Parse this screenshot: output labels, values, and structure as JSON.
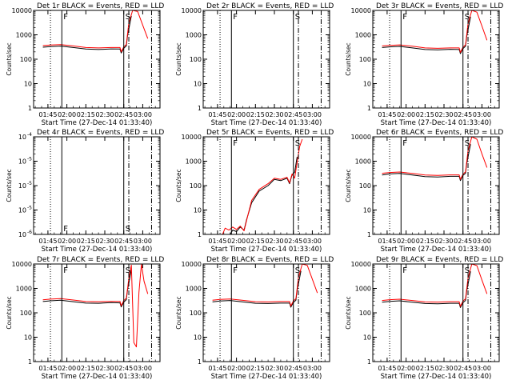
{
  "chart_data": [
    {
      "type": "line",
      "title": "Det 1r BLACK = Events, RED = LLD",
      "xlabel": "Start Time (27-Dec-14 01:33:40)",
      "ylabel": "Counts/sec",
      "y_scale": "log",
      "ylim": [
        1,
        10000
      ],
      "xlim": [
        "01:33:40",
        "03:13:40"
      ],
      "x_ticks": [
        "01:45",
        "02:00",
        "02:15",
        "02:30",
        "02:45",
        "03:00"
      ],
      "y_ticks": [
        "1",
        "10",
        "100",
        "1000",
        "10000"
      ],
      "vline_labels": [
        "F",
        "S"
      ],
      "series": [
        {
          "color": "#000000",
          "x": [
            "01:41",
            "01:47",
            "01:55",
            "02:05",
            "02:15",
            "02:25",
            "02:35",
            "02:42",
            "02:43",
            "02:45",
            "02:47",
            "02:48",
            "02:51"
          ],
          "values": [
            310,
            330,
            345,
            300,
            260,
            250,
            265,
            260,
            180,
            280,
            350,
            900,
            6000
          ]
        },
        {
          "color": "#ff0000",
          "x": [
            "01:41",
            "01:47",
            "01:55",
            "02:05",
            "02:15",
            "02:25",
            "02:35",
            "02:42",
            "02:43",
            "02:45",
            "02:47",
            "02:49",
            "02:52",
            "02:56",
            "03:00",
            "03:04"
          ],
          "values": [
            360,
            380,
            395,
            350,
            300,
            290,
            300,
            300,
            200,
            320,
            400,
            3000,
            10000,
            9000,
            2500,
            700
          ]
        }
      ]
    },
    {
      "type": "line",
      "title": "Det 2r BLACK = Events, RED = LLD",
      "xlabel": "Start Time (27-Dec-14 01:33:40)",
      "ylabel": "Counts/sec",
      "y_scale": "log",
      "ylim": [
        1,
        10000
      ],
      "xlim": [
        "01:33:40",
        "03:13:40"
      ],
      "x_ticks": [
        "01:45",
        "02:00",
        "02:15",
        "02:30",
        "02:45",
        "03:00"
      ],
      "y_ticks": [
        "1",
        "10",
        "100",
        "1000",
        "10000"
      ],
      "vline_labels": [
        "F",
        "S"
      ],
      "series": []
    },
    {
      "type": "line",
      "title": "Det 3r BLACK = Events, RED = LLD",
      "xlabel": "Start Time (27-Dec-14 01:33:40)",
      "ylabel": "Counts/sec",
      "y_scale": "log",
      "ylim": [
        1,
        10000
      ],
      "xlim": [
        "01:33:40",
        "03:13:40"
      ],
      "x_ticks": [
        "01:45",
        "02:00",
        "02:15",
        "02:30",
        "02:45",
        "03:00"
      ],
      "y_ticks": [
        "1",
        "10",
        "100",
        "1000",
        "10000"
      ],
      "vline_labels": [
        "F",
        "S"
      ],
      "series": [
        {
          "color": "#000000",
          "x": [
            "01:41",
            "01:47",
            "01:55",
            "02:05",
            "02:15",
            "02:25",
            "02:35",
            "02:42",
            "02:43",
            "02:45",
            "02:47",
            "02:48",
            "02:51"
          ],
          "values": [
            300,
            320,
            335,
            290,
            250,
            240,
            255,
            250,
            170,
            270,
            340,
            850,
            5500
          ]
        },
        {
          "color": "#ff0000",
          "x": [
            "01:41",
            "01:47",
            "01:55",
            "02:05",
            "02:15",
            "02:25",
            "02:35",
            "02:42",
            "02:43",
            "02:45",
            "02:47",
            "02:49",
            "02:52",
            "02:56",
            "03:00",
            "03:04"
          ],
          "values": [
            350,
            370,
            385,
            340,
            290,
            280,
            290,
            290,
            190,
            310,
            390,
            2800,
            10000,
            8500,
            2300,
            600
          ]
        }
      ]
    },
    {
      "type": "line",
      "title": "Det 4r BLACK = Events, RED = LLD",
      "xlabel": "Start Time (27-Dec-14 01:33:40)",
      "ylabel": "Counts/sec",
      "y_scale": "log",
      "ylim": [
        1e-06,
        0.0001
      ],
      "xlim": [
        "01:33:40",
        "03:13:40"
      ],
      "x_ticks": [
        "01:45",
        "02:00",
        "02:15",
        "02:30",
        "02:45",
        "03:00"
      ],
      "y_ticks": [
        "10",
        "10",
        "10",
        "10",
        "10"
      ],
      "y_tick_exponents": [
        "-6",
        "-5",
        "-5",
        "-5",
        "-4"
      ],
      "vline_labels": [
        "F",
        "S"
      ],
      "series": []
    },
    {
      "type": "line",
      "title": "Det 5r BLACK = Events, RED = LLD",
      "xlabel": "Start Time (27-Dec-14 01:33:40)",
      "ylabel": "Counts/sec",
      "y_scale": "log",
      "ylim": [
        1,
        10000
      ],
      "xlim": [
        "01:33:40",
        "03:13:40"
      ],
      "x_ticks": [
        "01:45",
        "02:00",
        "02:15",
        "02:30",
        "02:45",
        "03:00"
      ],
      "y_ticks": [
        "1",
        "10",
        "100",
        "1000",
        "10000"
      ],
      "vline_labels": [
        "F",
        "S"
      ],
      "series": [
        {
          "color": "#000000",
          "x": [
            "01:55",
            "01:57",
            "02:00",
            "02:03",
            "02:06",
            "02:08",
            "02:12",
            "02:18",
            "02:25",
            "02:30",
            "02:35",
            "02:40",
            "02:42",
            "02:44",
            "02:46",
            "02:48"
          ],
          "values": [
            1,
            1.5,
            1.3,
            2,
            1.5,
            4,
            20,
            60,
            100,
            180,
            160,
            200,
            120,
            280,
            350,
            1500
          ]
        },
        {
          "color": "#ff0000",
          "x": [
            "01:49",
            "01:51",
            "01:54",
            "01:57",
            "02:00",
            "02:03",
            "02:06",
            "02:09",
            "02:12",
            "02:18",
            "02:25",
            "02:30",
            "02:35",
            "02:40",
            "02:42",
            "02:44",
            "02:46",
            "02:48",
            "02:50",
            "02:52"
          ],
          "values": [
            1,
            1.8,
            1.5,
            2,
            1.6,
            2.2,
            1.4,
            6,
            25,
            70,
            120,
            200,
            180,
            220,
            130,
            300,
            200,
            900,
            4000,
            8000
          ]
        }
      ]
    },
    {
      "type": "line",
      "title": "Det 6r BLACK = Events, RED = LLD",
      "xlabel": "Start Time (27-Dec-14 01:33:40)",
      "ylabel": "Counts/sec",
      "y_scale": "log",
      "ylim": [
        1,
        10000
      ],
      "xlim": [
        "01:33:40",
        "03:13:40"
      ],
      "x_ticks": [
        "01:45",
        "02:00",
        "02:15",
        "02:30",
        "02:45",
        "03:00"
      ],
      "y_ticks": [
        "1",
        "10",
        "100",
        "1000",
        "10000"
      ],
      "vline_labels": [
        "F",
        "S"
      ],
      "series": [
        {
          "color": "#000000",
          "x": [
            "01:41",
            "01:47",
            "01:55",
            "02:05",
            "02:15",
            "02:25",
            "02:35",
            "02:42",
            "02:43",
            "02:45",
            "02:47",
            "02:48",
            "02:51"
          ],
          "values": [
            270,
            300,
            315,
            270,
            235,
            225,
            240,
            240,
            160,
            260,
            320,
            800,
            5000
          ]
        },
        {
          "color": "#ff0000",
          "x": [
            "01:41",
            "01:47",
            "01:55",
            "02:05",
            "02:15",
            "02:25",
            "02:35",
            "02:42",
            "02:43",
            "02:45",
            "02:47",
            "02:49",
            "02:52",
            "02:56",
            "03:00",
            "03:04"
          ],
          "values": [
            320,
            345,
            360,
            315,
            270,
            260,
            275,
            275,
            180,
            295,
            370,
            2600,
            10000,
            8000,
            2000,
            550
          ]
        }
      ]
    },
    {
      "type": "line",
      "title": "Det 7r BLACK = Events, RED = LLD",
      "xlabel": "Start Time (27-Dec-14 01:33:40)",
      "ylabel": "Counts/sec",
      "y_scale": "log",
      "ylim": [
        1,
        10000
      ],
      "xlim": [
        "01:33:40",
        "03:13:40"
      ],
      "x_ticks": [
        "01:45",
        "02:00",
        "02:15",
        "02:30",
        "02:45",
        "03:00"
      ],
      "y_ticks": [
        "1",
        "10",
        "100",
        "1000",
        "10000"
      ],
      "vline_labels": [
        "F",
        "S"
      ],
      "series": [
        {
          "color": "#000000",
          "x": [
            "01:41",
            "01:47",
            "01:55",
            "02:05",
            "02:15",
            "02:25",
            "02:35",
            "02:42",
            "02:43",
            "02:45",
            "02:47",
            "02:48",
            "02:51"
          ],
          "values": [
            290,
            310,
            330,
            285,
            250,
            245,
            260,
            255,
            175,
            275,
            345,
            850,
            5800
          ]
        },
        {
          "color": "#ff0000",
          "x": [
            "01:41",
            "01:47",
            "01:55",
            "02:05",
            "02:15",
            "02:25",
            "02:35",
            "02:42",
            "02:43",
            "02:45",
            "02:47",
            "02:49",
            "02:51",
            "02:53",
            "02:55",
            "02:57",
            "02:59",
            "03:01",
            "03:04"
          ],
          "values": [
            340,
            365,
            380,
            335,
            290,
            285,
            295,
            295,
            195,
            315,
            395,
            2500,
            9000,
            6,
            4,
            700,
            10000,
            2000,
            600
          ]
        }
      ]
    },
    {
      "type": "line",
      "title": "Det 8r BLACK = Events, RED = LLD",
      "xlabel": "Start Time (27-Dec-14 01:33:40)",
      "ylabel": "Counts/sec",
      "y_scale": "log",
      "ylim": [
        1,
        10000
      ],
      "xlim": [
        "01:33:40",
        "03:13:40"
      ],
      "x_ticks": [
        "01:45",
        "02:00",
        "02:15",
        "02:30",
        "02:45",
        "03:00"
      ],
      "y_ticks": [
        "1",
        "10",
        "100",
        "1000",
        "10000"
      ],
      "vline_labels": [
        "F",
        "S"
      ],
      "series": [
        {
          "color": "#000000",
          "x": [
            "01:41",
            "01:47",
            "01:55",
            "02:05",
            "02:15",
            "02:25",
            "02:35",
            "02:42",
            "02:43",
            "02:45",
            "02:47",
            "02:48",
            "02:51"
          ],
          "values": [
            280,
            305,
            320,
            280,
            245,
            240,
            250,
            250,
            170,
            265,
            330,
            820,
            5200
          ]
        },
        {
          "color": "#ff0000",
          "x": [
            "01:41",
            "01:47",
            "01:55",
            "02:05",
            "02:15",
            "02:25",
            "02:35",
            "02:42",
            "02:43",
            "02:45",
            "02:47",
            "02:49",
            "02:52",
            "02:56",
            "03:00",
            "03:04"
          ],
          "values": [
            330,
            355,
            370,
            325,
            285,
            280,
            290,
            290,
            190,
            305,
            380,
            2700,
            10000,
            8800,
            2400,
            650
          ]
        }
      ]
    },
    {
      "type": "line",
      "title": "Det 9r BLACK = Events, RED = LLD",
      "xlabel": "Start Time (27-Dec-14 01:33:40)",
      "ylabel": "Counts/sec",
      "y_scale": "log",
      "ylim": [
        1,
        10000
      ],
      "xlim": [
        "01:33:40",
        "03:13:40"
      ],
      "x_ticks": [
        "01:45",
        "02:00",
        "02:15",
        "02:30",
        "02:45",
        "03:00"
      ],
      "y_ticks": [
        "1",
        "10",
        "100",
        "1000",
        "10000"
      ],
      "vline_labels": [
        "F",
        "S"
      ],
      "series": [
        {
          "color": "#000000",
          "x": [
            "01:41",
            "01:47",
            "01:55",
            "02:05",
            "02:15",
            "02:25",
            "02:35",
            "02:42",
            "02:43",
            "02:45",
            "02:47",
            "02:48",
            "02:51"
          ],
          "values": [
            270,
            295,
            310,
            270,
            240,
            235,
            245,
            245,
            165,
            260,
            320,
            800,
            5000
          ]
        },
        {
          "color": "#ff0000",
          "x": [
            "01:41",
            "01:47",
            "01:55",
            "02:05",
            "02:15",
            "02:25",
            "02:35",
            "02:42",
            "02:43",
            "02:45",
            "02:47",
            "02:49",
            "02:52",
            "02:56",
            "03:00",
            "03:04"
          ],
          "values": [
            320,
            345,
            360,
            320,
            280,
            275,
            285,
            285,
            185,
            300,
            375,
            2600,
            10000,
            8600,
            2200,
            600
          ]
        }
      ]
    }
  ],
  "vertical_lines": [
    {
      "time": "01:47",
      "style": "dotted"
    },
    {
      "time": "01:56",
      "style": "solid",
      "label": "F"
    },
    {
      "time": "02:45",
      "style": "solid",
      "label": "S"
    },
    {
      "time": "02:49",
      "style": "dashdot"
    },
    {
      "time": "03:07",
      "style": "dashdot"
    }
  ],
  "colors": {
    "events": "#000000",
    "lld": "#ff0000",
    "background": "#ffffff"
  }
}
